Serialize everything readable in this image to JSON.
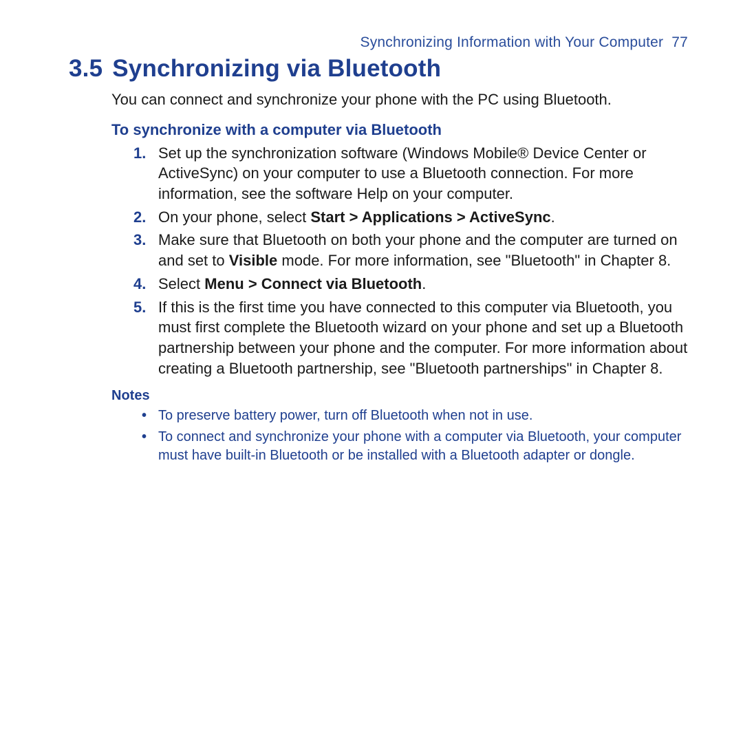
{
  "header": {
    "chapter_title": "Synchronizing Information with Your Computer",
    "page_number": "77"
  },
  "section": {
    "number": "3.5",
    "title": "Synchronizing via Bluetooth",
    "lead": "You can connect and synchronize your phone with the PC using Bluetooth.",
    "subhead": "To synchronize with a computer via Bluetooth",
    "steps": [
      {
        "pre": "Set up the synchronization software (Windows Mobile® Device Center or ActiveSync) on your computer to use a Bluetooth connection. For more information, see the software Help on your computer.",
        "bold": "",
        "post": ""
      },
      {
        "pre": "On your phone, select ",
        "bold": "Start > Applications > ActiveSync",
        "post": "."
      },
      {
        "pre": "Make sure that Bluetooth on both your phone and the computer are turned on and set to ",
        "bold": "Visible",
        "post": " mode. For more information, see \"Bluetooth\" in Chapter 8."
      },
      {
        "pre": "Select ",
        "bold": "Menu > Connect via Bluetooth",
        "post": "."
      },
      {
        "pre": "If this is the first time you have connected to this computer via Bluetooth, you must first complete the Bluetooth wizard on your phone and set up a Bluetooth partnership between your phone and the computer. For more information about creating a Bluetooth partnership, see \"Bluetooth partnerships\" in Chapter 8.",
        "bold": "",
        "post": ""
      }
    ],
    "notes_label": "Notes",
    "notes": [
      "To preserve battery power, turn off Bluetooth when not in use.",
      "To connect and synchronize your phone with a computer via Bluetooth, your computer must have built-in Bluetooth or be installed with a Bluetooth adapter or dongle."
    ]
  },
  "colors": {
    "accent_blue": "#1f3f8f",
    "body_text": "#1a1a1a",
    "background": "#ffffff"
  },
  "typography": {
    "title_fontsize_pt": 26,
    "body_fontsize_pt": 16,
    "notes_fontsize_pt": 15,
    "font_family": "Myriad Pro / Segoe UI"
  }
}
